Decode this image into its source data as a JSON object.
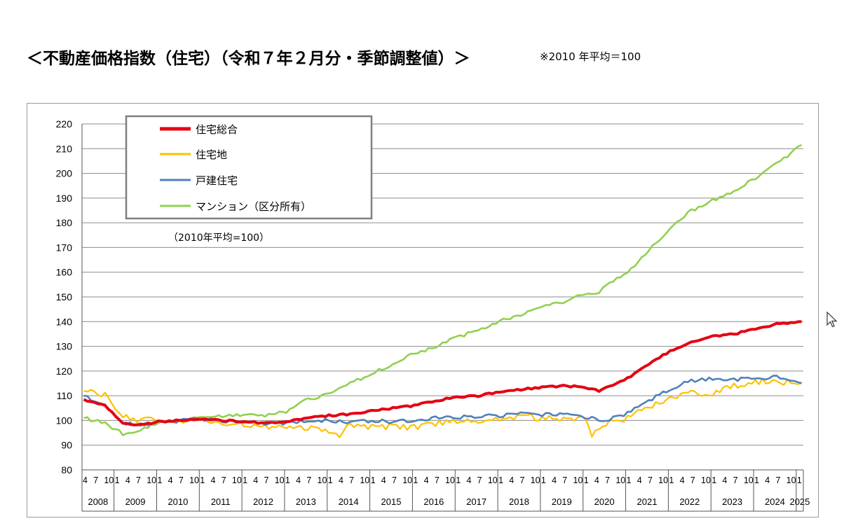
{
  "header": {
    "title": "＜不動産価格指数（住宅）（令和７年２月分・季節調整値）＞",
    "note": "※2010 年平均＝100"
  },
  "chart_data": {
    "type": "line",
    "ylim": [
      80,
      220
    ],
    "yticks": [
      80,
      90,
      100,
      110,
      120,
      130,
      140,
      150,
      160,
      170,
      180,
      190,
      200,
      210,
      220
    ],
    "grid": true,
    "unit_label": "（2010年平均=100）",
    "legend_position": "top-left",
    "x_start": "2008-04",
    "x_end": "2025-02",
    "month_tick_labels": [
      "4",
      "7",
      "10",
      "1"
    ],
    "year_labels": [
      "2008",
      "2009",
      "2010",
      "2011",
      "2012",
      "2013",
      "2014",
      "2015",
      "2016",
      "2017",
      "2018",
      "2019",
      "2020",
      "2021",
      "2022",
      "2023",
      "2024",
      "2025"
    ],
    "series": [
      {
        "name": "住宅総合",
        "color": "#e60012",
        "points": [
          [
            "2008-04",
            108.5
          ],
          [
            "2008-10",
            106
          ],
          [
            "2009-03",
            99
          ],
          [
            "2009-07",
            98
          ],
          [
            "2010-01",
            99.5
          ],
          [
            "2010-07",
            100
          ],
          [
            "2011-01",
            100.5
          ],
          [
            "2011-07",
            100
          ],
          [
            "2012-01",
            99.5
          ],
          [
            "2012-07",
            99
          ],
          [
            "2013-01",
            99.5
          ],
          [
            "2013-07",
            101
          ],
          [
            "2014-01",
            102
          ],
          [
            "2014-07",
            102.5
          ],
          [
            "2015-01",
            104
          ],
          [
            "2015-07",
            105
          ],
          [
            "2016-01",
            106
          ],
          [
            "2016-07",
            108
          ],
          [
            "2017-01",
            109.5
          ],
          [
            "2017-07",
            110
          ],
          [
            "2018-01",
            111.5
          ],
          [
            "2018-07",
            112.5
          ],
          [
            "2019-01",
            113.5
          ],
          [
            "2019-07",
            114
          ],
          [
            "2020-01",
            113.5
          ],
          [
            "2020-05",
            112
          ],
          [
            "2020-10",
            115
          ],
          [
            "2021-01",
            117
          ],
          [
            "2021-07",
            123
          ],
          [
            "2022-01",
            128
          ],
          [
            "2022-07",
            132
          ],
          [
            "2023-01",
            134
          ],
          [
            "2023-07",
            135
          ],
          [
            "2024-01",
            137
          ],
          [
            "2024-07",
            139
          ],
          [
            "2025-02",
            140
          ]
        ]
      },
      {
        "name": "住宅地",
        "color": "#ffc000",
        "points": [
          [
            "2008-04",
            112
          ],
          [
            "2008-10",
            110
          ],
          [
            "2009-03",
            102
          ],
          [
            "2009-07",
            100
          ],
          [
            "2010-01",
            100
          ],
          [
            "2010-07",
            100
          ],
          [
            "2011-01",
            100.5
          ],
          [
            "2011-07",
            98.5
          ],
          [
            "2012-01",
            98.5
          ],
          [
            "2012-07",
            97.5
          ],
          [
            "2013-01",
            97.5
          ],
          [
            "2013-07",
            97
          ],
          [
            "2014-01",
            96
          ],
          [
            "2014-04",
            94
          ],
          [
            "2014-07",
            98
          ],
          [
            "2015-01",
            97.5
          ],
          [
            "2015-07",
            97.5
          ],
          [
            "2016-01",
            97
          ],
          [
            "2016-07",
            98.5
          ],
          [
            "2017-01",
            100
          ],
          [
            "2017-07",
            100
          ],
          [
            "2018-01",
            101
          ],
          [
            "2018-07",
            101.5
          ],
          [
            "2019-01",
            101
          ],
          [
            "2019-07",
            100.5
          ],
          [
            "2020-01",
            101
          ],
          [
            "2020-03",
            94
          ],
          [
            "2020-07",
            99
          ],
          [
            "2021-01",
            101
          ],
          [
            "2021-07",
            105
          ],
          [
            "2022-01",
            109
          ],
          [
            "2022-07",
            111
          ],
          [
            "2023-01",
            111
          ],
          [
            "2023-07",
            114
          ],
          [
            "2024-01",
            116
          ],
          [
            "2024-07",
            115.5
          ],
          [
            "2025-02",
            115.5
          ]
        ]
      },
      {
        "name": "戸建住宅",
        "color": "#4f81bd",
        "points": [
          [
            "2008-04",
            110
          ],
          [
            "2008-10",
            106
          ],
          [
            "2009-03",
            99
          ],
          [
            "2009-07",
            98
          ],
          [
            "2010-01",
            99.5
          ],
          [
            "2010-07",
            100
          ],
          [
            "2011-01",
            100.5
          ],
          [
            "2011-07",
            100
          ],
          [
            "2012-01",
            99
          ],
          [
            "2012-07",
            98.5
          ],
          [
            "2013-01",
            99
          ],
          [
            "2013-07",
            100
          ],
          [
            "2014-01",
            100
          ],
          [
            "2014-07",
            99.5
          ],
          [
            "2015-01",
            100
          ],
          [
            "2015-07",
            99.5
          ],
          [
            "2016-01",
            100
          ],
          [
            "2016-07",
            101
          ],
          [
            "2017-01",
            101.5
          ],
          [
            "2017-07",
            101.5
          ],
          [
            "2018-01",
            102
          ],
          [
            "2018-07",
            103
          ],
          [
            "2019-01",
            102.5
          ],
          [
            "2019-07",
            102.5
          ],
          [
            "2020-01",
            101.5
          ],
          [
            "2020-07",
            100
          ],
          [
            "2021-01",
            103
          ],
          [
            "2021-07",
            108
          ],
          [
            "2022-01",
            113
          ],
          [
            "2022-07",
            116
          ],
          [
            "2023-01",
            117
          ],
          [
            "2023-07",
            116.5
          ],
          [
            "2024-01",
            117
          ],
          [
            "2024-07",
            117.5
          ],
          [
            "2025-02",
            115
          ]
        ]
      },
      {
        "name": "マンション（区分所有）",
        "color": "#92d050",
        "points": [
          [
            "2008-04",
            101
          ],
          [
            "2008-10",
            99
          ],
          [
            "2009-03",
            94.5
          ],
          [
            "2009-07",
            95.5
          ],
          [
            "2010-01",
            99
          ],
          [
            "2010-07",
            100
          ],
          [
            "2011-01",
            101
          ],
          [
            "2011-07",
            102
          ],
          [
            "2012-01",
            102.5
          ],
          [
            "2012-07",
            102
          ],
          [
            "2013-01",
            103.5
          ],
          [
            "2013-07",
            108.5
          ],
          [
            "2014-01",
            111
          ],
          [
            "2014-07",
            115
          ],
          [
            "2015-01",
            119
          ],
          [
            "2015-07",
            123
          ],
          [
            "2016-01",
            127
          ],
          [
            "2016-07",
            130
          ],
          [
            "2017-01",
            133.5
          ],
          [
            "2017-07",
            136.5
          ],
          [
            "2018-01",
            140
          ],
          [
            "2018-07",
            143
          ],
          [
            "2019-01",
            146.5
          ],
          [
            "2019-07",
            148
          ],
          [
            "2020-01",
            151
          ],
          [
            "2020-05",
            152
          ],
          [
            "2020-07",
            155
          ],
          [
            "2021-01",
            160
          ],
          [
            "2021-07",
            169
          ],
          [
            "2022-01",
            178
          ],
          [
            "2022-07",
            185
          ],
          [
            "2023-01",
            189
          ],
          [
            "2023-07",
            193
          ],
          [
            "2024-01",
            198
          ],
          [
            "2024-07",
            204
          ],
          [
            "2025-02",
            211.5
          ]
        ]
      }
    ]
  }
}
